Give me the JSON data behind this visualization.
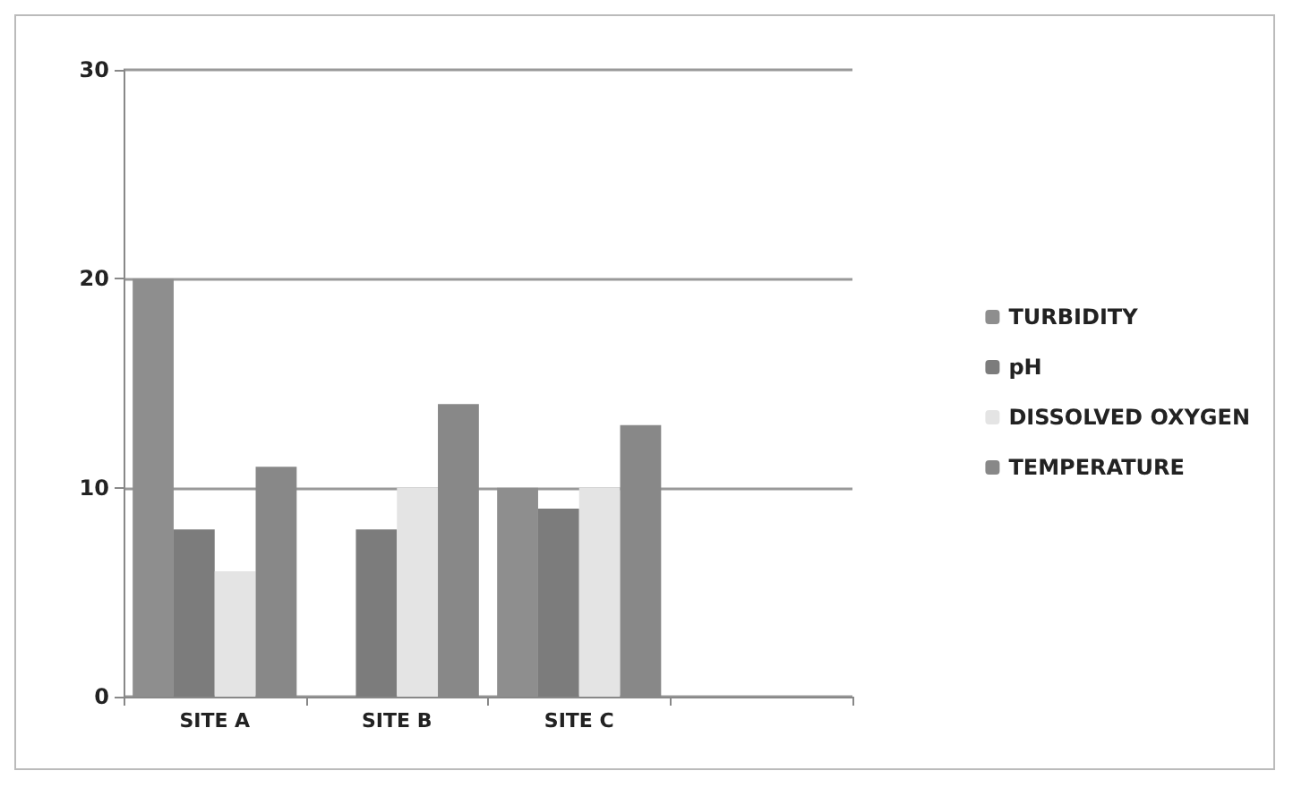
{
  "chart_data": {
    "type": "bar",
    "categories": [
      "SITE A",
      "SITE B",
      "SITE C",
      null
    ],
    "series": [
      {
        "name": "TURBIDITY",
        "color": "#8e8e8e",
        "values": [
          20,
          0,
          10,
          null
        ]
      },
      {
        "name": "pH",
        "color": "#7c7c7c",
        "values": [
          8,
          8,
          9,
          null
        ]
      },
      {
        "name": "DISSOLVED OXYGEN",
        "color": "#e4e4e4",
        "values": [
          6,
          10,
          10,
          null
        ]
      },
      {
        "name": "TEMPERATURE",
        "color": "#888888",
        "values": [
          11,
          14,
          13,
          null
        ]
      }
    ],
    "ylim": [
      0,
      30
    ],
    "yticks": [
      0,
      10,
      20,
      30
    ],
    "grid": "y",
    "legend": "right"
  }
}
